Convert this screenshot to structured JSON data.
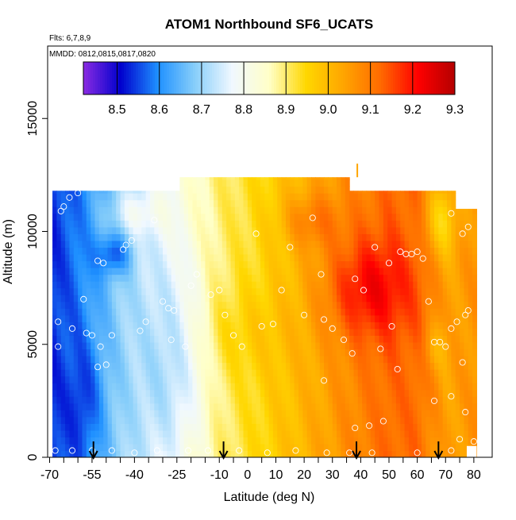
{
  "chart_data": {
    "type": "heatmap",
    "title": "ATOM1 Northbound SF6_UCATS",
    "subtitle_lines": [
      "Flts: 6,7,8,9",
      "MMDD: 0812,0815,0817,0820"
    ],
    "xlabel": "Latitude (deg N)",
    "ylabel": "Altitude (m)",
    "xlim": [
      -70,
      85
    ],
    "ylim": [
      0,
      17500
    ],
    "x_ticks": [
      -70,
      -55,
      -40,
      -25,
      -10,
      0,
      10,
      20,
      30,
      40,
      50,
      60,
      70,
      80
    ],
    "x_tick_labels": [
      "-70",
      "-55",
      "-40",
      "-25",
      "-10",
      "0",
      "10",
      "20",
      "30",
      "40",
      "50",
      "60",
      "70",
      "80"
    ],
    "x_minor_ticks": [
      -65,
      -60,
      -50,
      -45,
      -35,
      -30,
      -20,
      -15,
      -5,
      5,
      15,
      25,
      35,
      45,
      55,
      65,
      75
    ],
    "y_ticks": [
      0,
      5000,
      10000,
      15000
    ],
    "y_tick_labels": [
      "0",
      "5000",
      "10000",
      "15000"
    ],
    "colorbar": {
      "min": 8.42,
      "max": 9.3,
      "ticks": [
        8.5,
        8.6,
        8.7,
        8.8,
        8.9,
        9.0,
        9.1,
        9.2,
        9.3
      ],
      "tick_labels": [
        "8.5",
        "8.6",
        "8.7",
        "8.8",
        "8.9",
        "9.0",
        "9.1",
        "9.2",
        "9.3"
      ],
      "placement": "top-inside"
    },
    "colors": [
      "#8a2be2",
      "#0000cd",
      "#1e90ff",
      "#87cefa",
      "#f0f8ff",
      "#ffffc8",
      "#ffd700",
      "#ffa500",
      "#ff6a00",
      "#ff0000",
      "#b40000"
    ],
    "arrows_lat": [
      -54.5,
      -8.5,
      38.5,
      67.5
    ],
    "field_extent": {
      "lat": [
        -69,
        80
      ],
      "alt_top": 11800,
      "alt_top_mid": 12400,
      "mid_lat": [
        -25,
        35
      ]
    },
    "observations": [
      [
        -68,
        300
      ],
      [
        -67,
        4900
      ],
      [
        -67,
        6000
      ],
      [
        -66,
        10900
      ],
      [
        -65,
        11100
      ],
      [
        -63,
        11500
      ],
      [
        -60,
        11700
      ],
      [
        -62,
        5700
      ],
      [
        -58,
        7000
      ],
      [
        -57,
        5500
      ],
      [
        -55,
        5400
      ],
      [
        -53,
        8700
      ],
      [
        -51,
        8600
      ],
      [
        -52,
        4900
      ],
      [
        -53,
        4000
      ],
      [
        -50,
        4100
      ],
      [
        -48,
        5400
      ],
      [
        -44,
        9200
      ],
      [
        -43,
        9400
      ],
      [
        -41,
        9600
      ],
      [
        -38,
        5600
      ],
      [
        -36,
        6000
      ],
      [
        -33,
        10500
      ],
      [
        -30,
        6900
      ],
      [
        -28,
        6600
      ],
      [
        -26,
        6500
      ],
      [
        -27,
        5200
      ],
      [
        -22,
        4900
      ],
      [
        -20,
        7600
      ],
      [
        -18,
        8100
      ],
      [
        -13,
        7200
      ],
      [
        -10,
        7400
      ],
      [
        -8,
        6300
      ],
      [
        -5,
        5400
      ],
      [
        -2,
        4900
      ],
      [
        3,
        9900
      ],
      [
        5,
        5800
      ],
      [
        9,
        5900
      ],
      [
        12,
        7400
      ],
      [
        15,
        9300
      ],
      [
        20,
        6300
      ],
      [
        23,
        10600
      ],
      [
        26,
        8100
      ],
      [
        27,
        6100
      ],
      [
        30,
        5700
      ],
      [
        34,
        5200
      ],
      [
        37,
        4600
      ],
      [
        38,
        7900
      ],
      [
        41,
        7400
      ],
      [
        45,
        9300
      ],
      [
        47,
        4800
      ],
      [
        50,
        8600
      ],
      [
        51,
        5800
      ],
      [
        54,
        9100
      ],
      [
        56,
        9000
      ],
      [
        58,
        9000
      ],
      [
        60,
        9100
      ],
      [
        62,
        8800
      ],
      [
        64,
        6900
      ],
      [
        66,
        5100
      ],
      [
        68,
        5100
      ],
      [
        70,
        4900
      ],
      [
        72,
        5700
      ],
      [
        74,
        6000
      ],
      [
        76,
        4200
      ],
      [
        77,
        6300
      ],
      [
        78,
        6500
      ],
      [
        72,
        10800
      ],
      [
        76,
        9900
      ],
      [
        78,
        10200
      ],
      [
        53,
        3900
      ],
      [
        27,
        3400
      ],
      [
        43,
        1400
      ],
      [
        38,
        1300
      ],
      [
        48,
        1600
      ],
      [
        66,
        2500
      ],
      [
        72,
        2700
      ],
      [
        77,
        2000
      ],
      [
        80,
        700
      ],
      [
        75,
        800
      ],
      [
        -62,
        300
      ],
      [
        -55,
        300
      ],
      [
        -48,
        300
      ],
      [
        -40,
        200
      ],
      [
        -32,
        300
      ],
      [
        -21,
        300
      ],
      [
        -14,
        300
      ],
      [
        -3,
        300
      ],
      [
        7,
        200
      ],
      [
        17,
        300
      ],
      [
        28,
        200
      ],
      [
        36,
        200
      ],
      [
        44,
        200
      ],
      [
        60,
        200
      ],
      [
        72,
        300
      ]
    ]
  }
}
